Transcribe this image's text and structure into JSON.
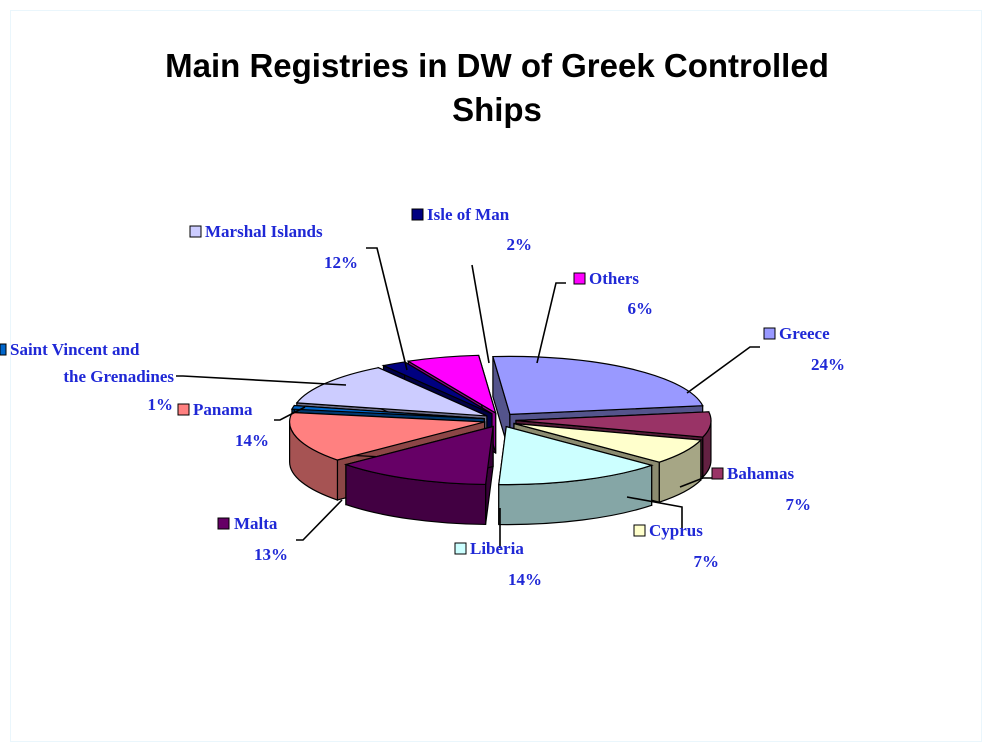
{
  "chart_data": {
    "type": "pie",
    "title_line1": "Main Registries in DW of Greek Controlled",
    "title_line2": "Ships",
    "slices": [
      {
        "name": "Greece",
        "value_label": "24%",
        "value": 24,
        "color": "#9999ff"
      },
      {
        "name": "Bahamas",
        "value_label": "7%",
        "value": 7,
        "color": "#993366"
      },
      {
        "name": "Cyprus",
        "value_label": "7%",
        "value": 7,
        "color": "#ffffcc"
      },
      {
        "name": "Liberia",
        "value_label": "14%",
        "value": 14,
        "color": "#ccffff"
      },
      {
        "name": "Malta",
        "value_label": "13%",
        "value": 13,
        "color": "#660066"
      },
      {
        "name": "Panama",
        "value_label": "14%",
        "value": 14,
        "color": "#ff8080"
      },
      {
        "name_line1": "Saint Vincent and",
        "name_line2": "the Grenadines",
        "value_label": "1%",
        "value": 1,
        "color": "#0066cc"
      },
      {
        "name": "Marshal Islands",
        "value_label": "12%",
        "value": 12,
        "color": "#ccccff"
      },
      {
        "name": "Isle of Man",
        "value_label": "2%",
        "value": 2,
        "color": "#000080"
      },
      {
        "name": "Others",
        "value_label": "6%",
        "value": 6,
        "color": "#ff00ff"
      }
    ]
  }
}
